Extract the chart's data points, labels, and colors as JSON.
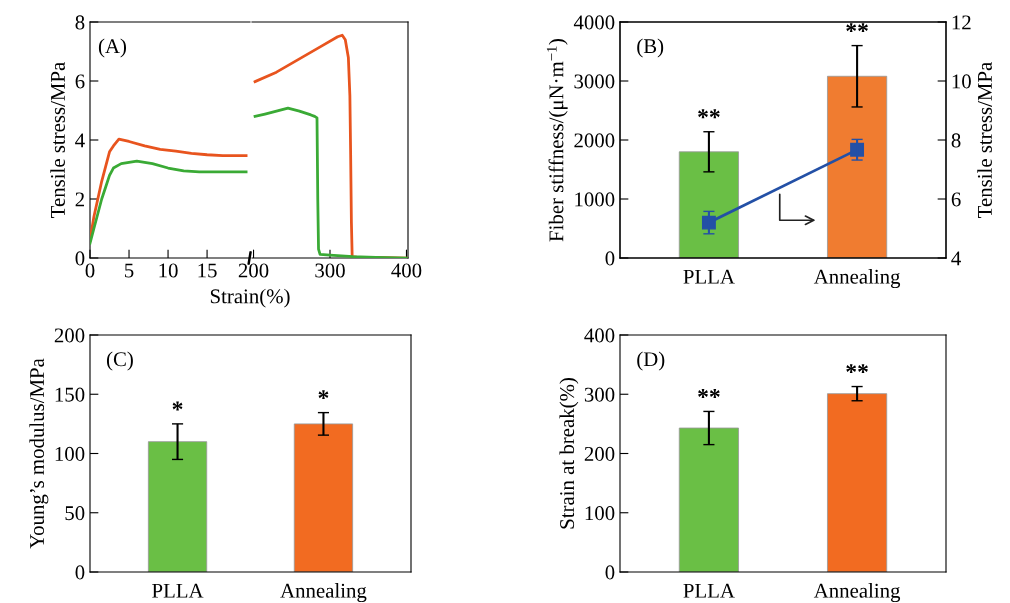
{
  "chart_data": [
    {
      "type": "line",
      "ylabel": "Tensile stress/MPa",
      "xlabel": "Strain(%)",
      "annotations": [
        "(A)"
      ],
      "xlim": [
        0,
        20.5
      ],
      "xticks": [
        0,
        5,
        10,
        15
      ],
      "ylim": [
        0,
        8
      ],
      "yticks": [
        0,
        2,
        4,
        6,
        8
      ],
      "line_style": "solid",
      "series": [
        {
          "color": "#e8541e",
          "x": [
            0,
            0.5,
            1,
            1.5,
            2,
            2.5,
            3,
            3.7,
            5,
            7,
            9,
            11,
            13,
            15,
            17,
            20
          ],
          "values": [
            0.6,
            1.4,
            2.0,
            2.6,
            3.1,
            3.6,
            3.8,
            4.03,
            3.95,
            3.8,
            3.68,
            3.62,
            3.55,
            3.5,
            3.47,
            3.47
          ]
        },
        {
          "color": "#3aaa35",
          "x": [
            0,
            0.5,
            1,
            1.5,
            2,
            2.5,
            3,
            4,
            6,
            8,
            10,
            12,
            14,
            17,
            20
          ],
          "values": [
            0.5,
            1.0,
            1.5,
            2.0,
            2.4,
            2.8,
            3.05,
            3.2,
            3.28,
            3.2,
            3.05,
            2.95,
            2.92,
            2.92,
            2.92
          ]
        }
      ]
    },
    {
      "type": "line",
      "tick_labels": "x",
      "xlim": [
        198,
        402
      ],
      "xticks": [
        200,
        300,
        400
      ],
      "ylim": [
        0,
        8
      ],
      "line_style": "solid",
      "series": [
        {
          "color": "#e8541e",
          "x": [
            202,
            230,
            260,
            290,
            310,
            316,
            320,
            324,
            326,
            327,
            328,
            329,
            335,
            360,
            400
          ],
          "values": [
            5.98,
            6.3,
            6.75,
            7.2,
            7.5,
            7.55,
            7.4,
            6.8,
            5.5,
            3.5,
            1.2,
            0.05,
            0.03,
            0.02,
            0
          ]
        },
        {
          "color": "#3aaa35",
          "x": [
            202,
            215,
            230,
            245,
            260,
            275,
            280,
            283,
            284,
            285,
            287,
            300,
            330,
            360,
            400
          ],
          "values": [
            4.8,
            4.88,
            4.98,
            5.08,
            4.98,
            4.85,
            4.8,
            4.75,
            2.0,
            0.3,
            0.12,
            0.1,
            0.05,
            0.02,
            0
          ]
        }
      ]
    },
    {
      "type": "bar",
      "categories": [
        "PLLA",
        "Annealing"
      ],
      "ylabel": "Fiber stiffness/(μN·m$^{−1}$)",
      "y2label": "Tensile stress/MPa",
      "ylim": [
        0,
        4000
      ],
      "yticks": [
        0,
        1000,
        2000,
        3000,
        4000
      ],
      "y2lim": [
        4,
        12
      ],
      "y2ticks": [
        4,
        6,
        8,
        10,
        12
      ],
      "annotations": [
        "(B)",
        "**",
        "**"
      ],
      "series": [
        {
          "type": "bar",
          "colors": [
            "#6abf45",
            "#f07c30"
          ],
          "values": [
            1800,
            3080
          ],
          "errors": [
            340,
            520
          ]
        },
        {
          "type": "line",
          "axis": "y2",
          "color": "#2350a6",
          "marker": "square",
          "values": [
            5.2,
            7.67
          ],
          "errors": [
            0.38,
            0.35
          ]
        }
      ]
    },
    {
      "type": "bar",
      "categories": [
        "PLLA",
        "Annealing"
      ],
      "ylabel": "Young’s modulus/MPa",
      "ylim": [
        0,
        200
      ],
      "yticks": [
        0,
        50,
        100,
        150,
        200
      ],
      "annotations": [
        "(C)",
        "*",
        "*"
      ],
      "series": [
        {
          "type": "bar",
          "colors": [
            "#6abf45",
            "#f26b21"
          ],
          "values": [
            110,
            125
          ],
          "errors": [
            15,
            9.5
          ]
        }
      ]
    },
    {
      "type": "bar",
      "categories": [
        "PLLA",
        "Annealing"
      ],
      "ylabel": "Strain at break(%)",
      "ylim": [
        0,
        400
      ],
      "yticks": [
        0,
        100,
        200,
        300,
        400
      ],
      "annotations": [
        "(D)",
        "**",
        "**"
      ],
      "series": [
        {
          "type": "bar",
          "colors": [
            "#6abf45",
            "#f26b21"
          ],
          "values": [
            243,
            301
          ],
          "errors": [
            28,
            12
          ]
        }
      ]
    }
  ]
}
